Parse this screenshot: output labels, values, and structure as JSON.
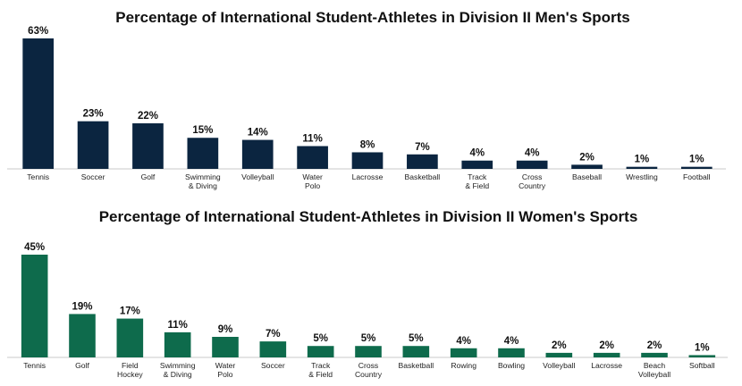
{
  "chart_data": [
    {
      "type": "bar",
      "title": "Percentage of International Student-Athletes in Division II Men's Sports",
      "categories": [
        "Tennis",
        "Soccer",
        "Golf",
        "Swimming\n& Diving",
        "Volleyball",
        "Water\nPolo",
        "Lacrosse",
        "Basketball",
        "Track\n& Field",
        "Cross\nCountry",
        "Baseball",
        "Wrestling",
        "Football"
      ],
      "values": [
        63,
        23,
        22,
        15,
        14,
        11,
        8,
        7,
        4,
        4,
        2,
        1,
        1
      ],
      "value_labels": [
        "63%",
        "23%",
        "22%",
        "15%",
        "14%",
        "11%",
        "8%",
        "7%",
        "4%",
        "4%",
        "2%",
        "1%",
        "1%"
      ],
      "color": "#0b2540",
      "grid": false
    },
    {
      "type": "bar",
      "title": "Percentage of International Student-Athletes in Division II Women's Sports",
      "categories": [
        "Tennis",
        "Golf",
        "Field\nHockey",
        "Swimming\n& Diving",
        "Water\nPolo",
        "Soccer",
        "Track\n& Field",
        "Cross\nCountry",
        "Basketball",
        "Rowing",
        "Bowling",
        "Volleyball",
        "Lacrosse",
        "Beach\nVolleyball",
        "Softball"
      ],
      "values": [
        45,
        19,
        17,
        11,
        9,
        7,
        5,
        5,
        5,
        4,
        4,
        2,
        2,
        2,
        1
      ],
      "value_labels": [
        "45%",
        "19%",
        "17%",
        "11%",
        "9%",
        "7%",
        "5%",
        "5%",
        "5%",
        "4%",
        "4%",
        "2%",
        "2%",
        "2%",
        "1%"
      ],
      "color": "#0e6b4c",
      "grid": false
    }
  ]
}
